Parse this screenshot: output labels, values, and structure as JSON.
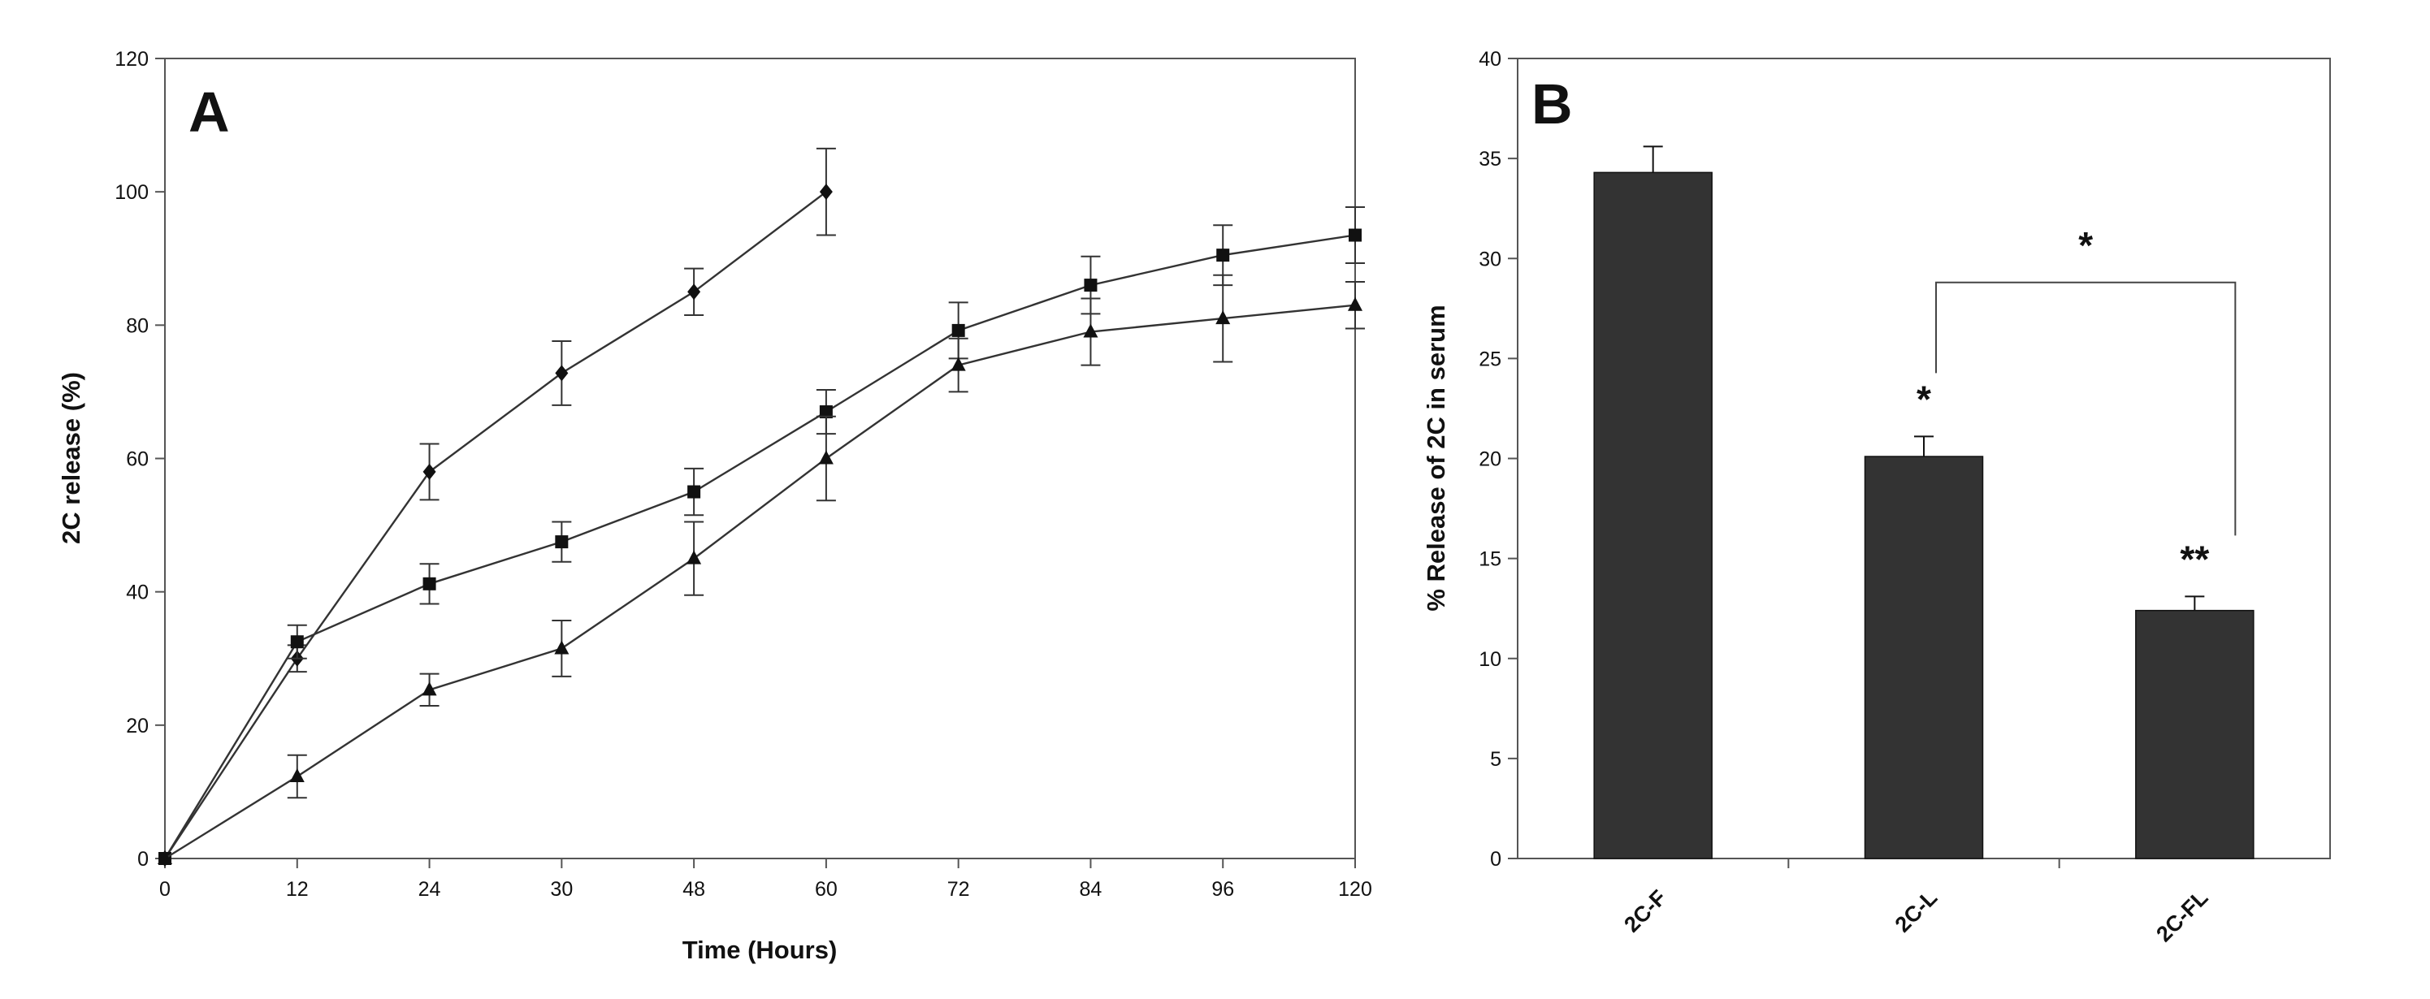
{
  "chart_data": [
    {
      "type": "line",
      "panel_label": "A",
      "xlabel": "Time (Hours)",
      "ylabel": "2C release (%)",
      "x_ticks": [
        0,
        12,
        24,
        30,
        48,
        60,
        72,
        84,
        96,
        120
      ],
      "x_tick_labels": [
        "0",
        "12",
        "24",
        "30",
        "48",
        "60",
        "72",
        "84",
        "96",
        "120"
      ],
      "y_ticks": [
        0,
        20,
        40,
        60,
        80,
        100,
        120
      ],
      "ylim": [
        0,
        120
      ],
      "grid": false,
      "series": [
        {
          "name": "diamond",
          "marker": "diamond",
          "points": [
            {
              "x": 0,
              "y": 0,
              "err": 0
            },
            {
              "x": 12,
              "y": 30,
              "err": 2
            },
            {
              "x": 24,
              "y": 58,
              "err": 4.2
            },
            {
              "x": 30,
              "y": 72.8,
              "err": 4.8
            },
            {
              "x": 48,
              "y": 85,
              "err": 3.5
            },
            {
              "x": 60,
              "y": 100,
              "err": 6.5
            }
          ]
        },
        {
          "name": "square",
          "marker": "square",
          "points": [
            {
              "x": 0,
              "y": 0,
              "err": 0
            },
            {
              "x": 12,
              "y": 32.5,
              "err": 2.5
            },
            {
              "x": 24,
              "y": 41.2,
              "err": 3
            },
            {
              "x": 30,
              "y": 47.5,
              "err": 3
            },
            {
              "x": 48,
              "y": 55,
              "err": 3.5
            },
            {
              "x": 60,
              "y": 67,
              "err": 3.3
            },
            {
              "x": 72,
              "y": 79.2,
              "err": 4.2
            },
            {
              "x": 84,
              "y": 86,
              "err": 4.3
            },
            {
              "x": 96,
              "y": 90.5,
              "err": 4.5
            },
            {
              "x": 120,
              "y": 93.5,
              "err": 4.2
            }
          ]
        },
        {
          "name": "triangle",
          "marker": "triangle",
          "points": [
            {
              "x": 0,
              "y": 0,
              "err": 0
            },
            {
              "x": 12,
              "y": 12.3,
              "err": 3.2
            },
            {
              "x": 24,
              "y": 25.3,
              "err": 2.4
            },
            {
              "x": 30,
              "y": 31.5,
              "err": 4.2
            },
            {
              "x": 48,
              "y": 45,
              "err": 5.5
            },
            {
              "x": 60,
              "y": 60,
              "err": 6.3
            },
            {
              "x": 72,
              "y": 74,
              "err": 4
            },
            {
              "x": 84,
              "y": 79,
              "err": 5
            },
            {
              "x": 96,
              "y": 81,
              "err": 6.5
            },
            {
              "x": 120,
              "y": 83,
              "err": 3.5
            }
          ]
        }
      ]
    },
    {
      "type": "bar",
      "panel_label": "B",
      "categories": [
        "2C-F",
        "2C-L",
        "2C-FL"
      ],
      "values": [
        34.3,
        20.1,
        12.4
      ],
      "errors": [
        1.3,
        1.0,
        0.7
      ],
      "xlabel": "",
      "ylabel": "% Release of 2C in serum",
      "y_ticks": [
        0,
        5,
        10,
        15,
        20,
        25,
        30,
        35,
        40
      ],
      "ylim": [
        0,
        40
      ],
      "bar_color": "#333333",
      "grid": false,
      "significance": [
        {
          "category": "2C-L",
          "label": "*"
        },
        {
          "category": "2C-FL",
          "label": "**"
        }
      ],
      "bracket": {
        "from": "2C-L",
        "to": "2C-FL",
        "label": "*"
      }
    }
  ]
}
